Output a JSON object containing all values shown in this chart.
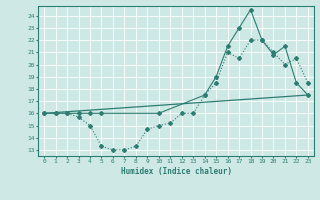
{
  "xlabel": "Humidex (Indice chaleur)",
  "xlim": [
    -0.5,
    23.5
  ],
  "ylim": [
    12.5,
    24.8
  ],
  "yticks": [
    13,
    14,
    15,
    16,
    17,
    18,
    19,
    20,
    21,
    22,
    23,
    24
  ],
  "xticks": [
    0,
    1,
    2,
    3,
    4,
    5,
    6,
    7,
    8,
    9,
    10,
    11,
    12,
    13,
    14,
    15,
    16,
    17,
    18,
    19,
    20,
    21,
    22,
    23
  ],
  "bg_color": "#cde8e5",
  "line_color": "#2e7d72",
  "grid_color": "#ffffff",
  "line1_x": [
    0,
    1,
    2,
    3,
    4,
    5,
    6,
    7,
    8,
    9,
    10,
    11,
    12,
    13,
    14,
    15,
    16,
    17,
    18,
    19,
    20,
    21,
    22,
    23
  ],
  "line1_y": [
    16,
    16,
    16,
    15.7,
    15,
    13.3,
    13,
    13,
    13.3,
    14.7,
    15,
    15.2,
    16,
    16,
    17.5,
    18.5,
    21,
    20.5,
    22,
    22,
    21,
    20,
    20.5,
    18.5
  ],
  "line2_x": [
    0,
    23
  ],
  "line2_y": [
    16.0,
    17.5
  ],
  "line3_x": [
    0,
    1,
    2,
    3,
    4,
    5,
    10,
    14,
    15,
    16,
    17,
    18,
    19,
    20,
    21,
    22,
    23
  ],
  "line3_y": [
    16,
    16,
    16,
    16,
    16,
    16,
    16,
    17.5,
    19.0,
    21.5,
    23.0,
    24.5,
    22.0,
    20.8,
    21.5,
    18.5,
    17.5
  ]
}
